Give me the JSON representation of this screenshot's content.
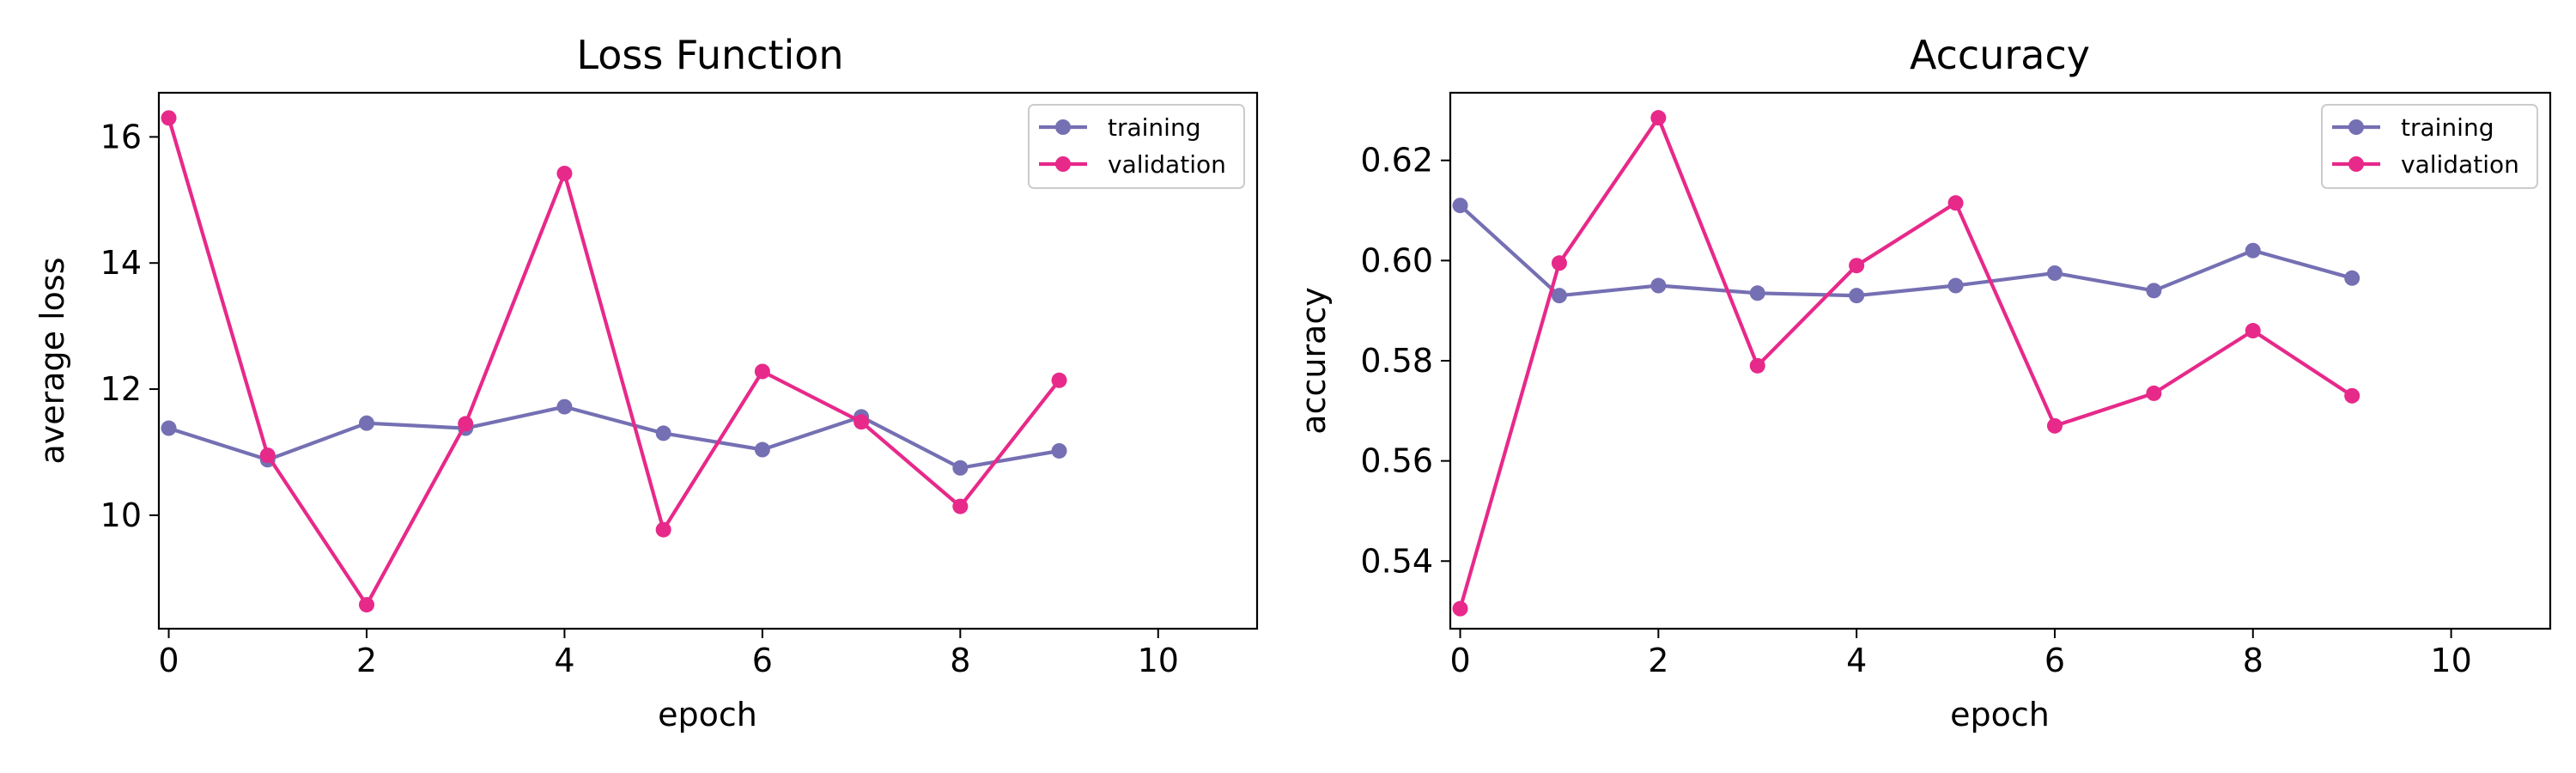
{
  "chart_data": [
    {
      "type": "line",
      "title": "Loss Function",
      "xlabel": "epoch",
      "ylabel": "average loss",
      "xlim": [
        -0.1,
        11
      ],
      "ylim": [
        8.2,
        16.7
      ],
      "xticks": [
        0,
        2,
        4,
        6,
        8,
        10
      ],
      "xtick_labels": [
        "0",
        "2",
        "4",
        "6",
        "8",
        "10"
      ],
      "yticks": [
        10,
        12,
        14,
        16
      ],
      "ytick_labels": [
        "10",
        "12",
        "14",
        "16"
      ],
      "grid": false,
      "legend_position": "top-right",
      "x": [
        0,
        1,
        2,
        3,
        4,
        5,
        6,
        7,
        8,
        9
      ],
      "series": [
        {
          "name": "training",
          "color": "#7570b3",
          "values": [
            11.38,
            10.88,
            11.46,
            11.38,
            11.72,
            11.3,
            11.04,
            11.56,
            10.75,
            11.02
          ]
        },
        {
          "name": "validation",
          "color": "#e7298a",
          "values": [
            16.3,
            10.95,
            8.58,
            11.45,
            15.42,
            9.77,
            12.28,
            11.48,
            10.14,
            12.14
          ]
        }
      ]
    },
    {
      "type": "line",
      "title": "Accuracy",
      "xlabel": "epoch",
      "ylabel": "accuracy",
      "xlim": [
        -0.1,
        11
      ],
      "ylim": [
        0.5265,
        0.6335
      ],
      "xticks": [
        0,
        2,
        4,
        6,
        8,
        10
      ],
      "xtick_labels": [
        "0",
        "2",
        "4",
        "6",
        "8",
        "10"
      ],
      "yticks": [
        0.54,
        0.56,
        0.58,
        0.6,
        0.62
      ],
      "ytick_labels": [
        "0.54",
        "0.56",
        "0.58",
        "0.60",
        "0.62"
      ],
      "grid": false,
      "legend_position": "top-right",
      "x": [
        0,
        1,
        2,
        3,
        4,
        5,
        6,
        7,
        8,
        9
      ],
      "series": [
        {
          "name": "training",
          "color": "#7570b3",
          "values": [
            0.611,
            0.593,
            0.595,
            0.5935,
            0.593,
            0.595,
            0.5975,
            0.594,
            0.602,
            0.5965
          ]
        },
        {
          "name": "validation",
          "color": "#e7298a",
          "values": [
            0.5305,
            0.5995,
            0.6285,
            0.579,
            0.599,
            0.6115,
            0.567,
            0.5735,
            0.586,
            0.573
          ]
        }
      ]
    }
  ]
}
